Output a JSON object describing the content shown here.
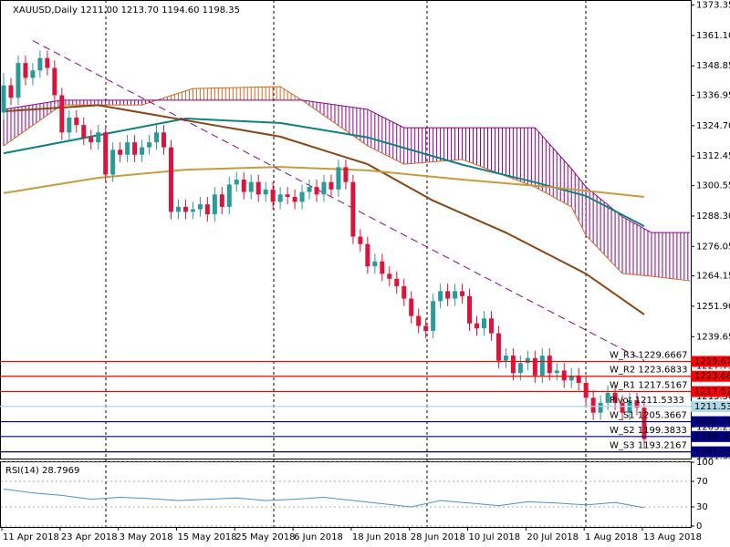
{
  "header": "XAUUSD,Daily  1211.00 1213.70 1194.60 1198.35",
  "chart_data": [
    {
      "type": "candlestick",
      "categories": [
        "11 Apr 2018",
        null,
        null,
        null,
        null,
        null,
        null,
        null,
        "23 Apr 2018",
        null,
        null,
        null,
        null,
        null,
        null,
        null,
        "3 May 2018",
        null,
        null,
        null,
        null,
        null,
        null,
        null,
        "15 May 2018",
        null,
        null,
        null,
        null,
        null,
        null,
        null,
        "25 May 2018",
        null,
        null,
        null,
        null,
        null,
        null,
        null,
        "6 Jun 2018",
        null,
        null,
        null,
        null,
        null,
        null,
        null,
        "18 Jun 2018",
        null,
        null,
        null,
        null,
        null,
        null,
        null,
        "28 Jun 2018",
        null,
        null,
        null,
        null,
        null,
        null,
        null,
        "10 Jul 2018",
        null,
        null,
        null,
        null,
        null,
        null,
        null,
        "20 Jul 2018",
        null,
        null,
        null,
        null,
        null,
        null,
        null,
        "1 Aug 2018",
        null,
        null,
        null,
        null,
        null,
        null,
        null,
        "13 Aug 2018"
      ],
      "open": [
        1330,
        1341,
        1336,
        1350,
        1344,
        1347,
        1352,
        1348,
        1337,
        1322,
        1328,
        1325,
        1320,
        1318,
        1322,
        1305,
        1315,
        1313,
        1318,
        1313,
        1316,
        1318,
        1322,
        1316,
        1290,
        1292,
        1290,
        1291,
        1293,
        1289,
        1297,
        1292,
        1301,
        1303,
        1298,
        1302,
        1297,
        1299,
        1294,
        1297,
        1296,
        1294,
        1298,
        1300,
        1297,
        1302,
        1299,
        1308,
        1302,
        1280,
        1277,
        1268,
        1270,
        1265,
        1263,
        1260,
        1255,
        1248,
        1244,
        1242,
        1254,
        1258,
        1255,
        1258,
        1256,
        1245,
        1243,
        1247,
        1241,
        1230,
        1232,
        1225,
        1229,
        1231,
        1224,
        1232,
        1225,
        1226,
        1222,
        1224,
        1221,
        1215,
        1209,
        1213,
        1217,
        1213,
        1209,
        1214,
        1211
      ],
      "high": [
        1346,
        1344,
        1353,
        1353,
        1350,
        1355,
        1355,
        1351,
        1340,
        1331,
        1331,
        1328,
        1323,
        1325,
        1325,
        1318,
        1318,
        1321,
        1321,
        1319,
        1321,
        1325,
        1325,
        1319,
        1295,
        1295,
        1294,
        1296,
        1296,
        1300,
        1300,
        1304,
        1306,
        1306,
        1305,
        1305,
        1302,
        1302,
        1300,
        1300,
        1299,
        1301,
        1303,
        1303,
        1305,
        1305,
        1311,
        1311,
        1305,
        1283,
        1280,
        1273,
        1273,
        1268,
        1266,
        1263,
        1258,
        1251,
        1247,
        1257,
        1261,
        1261,
        1261,
        1261,
        1259,
        1248,
        1250,
        1250,
        1244,
        1235,
        1235,
        1232,
        1234,
        1234,
        1235,
        1235,
        1229,
        1229,
        1227,
        1227,
        1224,
        1218,
        1216,
        1220,
        1220,
        1216,
        1217,
        1217,
        1213.7
      ],
      "low": [
        1327,
        1333,
        1333,
        1341,
        1341,
        1344,
        1345,
        1334,
        1319,
        1319,
        1322,
        1317,
        1315,
        1315,
        1302,
        1302,
        1310,
        1310,
        1310,
        1310,
        1313,
        1315,
        1313,
        1287,
        1287,
        1287,
        1287,
        1288,
        1286,
        1286,
        1289,
        1289,
        1298,
        1295,
        1295,
        1294,
        1294,
        1291,
        1291,
        1293,
        1291,
        1291,
        1295,
        1294,
        1294,
        1296,
        1296,
        1299,
        1277,
        1274,
        1265,
        1265,
        1262,
        1260,
        1257,
        1252,
        1245,
        1241,
        1239,
        1239,
        1251,
        1252,
        1252,
        1253,
        1242,
        1240,
        1240,
        1238,
        1227,
        1227,
        1222,
        1222,
        1226,
        1221,
        1221,
        1222,
        1222,
        1219,
        1219,
        1218,
        1212,
        1206,
        1206,
        1210,
        1210,
        1206,
        1206,
        1208,
        1194.6
      ],
      "close": [
        1341,
        1336,
        1350,
        1344,
        1347,
        1352,
        1348,
        1337,
        1322,
        1328,
        1325,
        1320,
        1318,
        1322,
        1305,
        1315,
        1313,
        1318,
        1313,
        1316,
        1318,
        1322,
        1316,
        1290,
        1292,
        1290,
        1291,
        1293,
        1289,
        1297,
        1292,
        1301,
        1303,
        1298,
        1302,
        1297,
        1299,
        1294,
        1297,
        1296,
        1294,
        1298,
        1300,
        1297,
        1302,
        1299,
        1308,
        1302,
        1280,
        1277,
        1268,
        1270,
        1265,
        1263,
        1260,
        1255,
        1248,
        1244,
        1242,
        1254,
        1258,
        1255,
        1258,
        1256,
        1245,
        1243,
        1247,
        1241,
        1230,
        1232,
        1225,
        1229,
        1231,
        1224,
        1232,
        1225,
        1226,
        1222,
        1224,
        1221,
        1215,
        1209,
        1213,
        1217,
        1213,
        1209,
        1214,
        1211,
        1198.35
      ],
      "up_color": "#2b9a9a",
      "down_color": "#dc143c",
      "ylim": [
        1190.5,
        1375.4
      ],
      "yticks": [
        1373.35,
        {
          "value": 1361.1,
          "label": "1361.10"
        },
        1348.85,
        1336.95,
        {
          "value": 1324.7,
          "label": "1324.70"
        },
        1312.45,
        1300.55,
        {
          "value": 1288.3,
          "label": "1288.30"
        },
        1276.05,
        1264.15,
        {
          "value": 1251.9,
          "label": "1251.90"
        },
        1239.65,
        1227.75,
        {
          "value": 1215.5,
          "label": "1215.50"
        },
        1203.25,
        1191.35
      ],
      "series": [
        {
          "color": "#0b8181",
          "x": [
            0,
            25,
            38,
            50,
            63,
            73,
            80,
            88
          ],
          "values": [
            1313.6,
            1327.6,
            1325.8,
            1320,
            1309,
            1301.9,
            1296.4,
            1284.2
          ]
        },
        {
          "color": "#8b4513",
          "x": [
            0,
            13,
            25,
            38,
            50,
            59,
            69,
            80,
            88
          ],
          "values": [
            1330.5,
            1333,
            1326.9,
            1320.3,
            1309.2,
            1294.5,
            1281.6,
            1265,
            1248.6
          ]
        },
        {
          "color": "#c89b3c",
          "x": [
            0,
            13,
            25,
            38,
            50,
            63,
            75,
            88
          ],
          "values": [
            1297.5,
            1303.7,
            1307,
            1308.1,
            1306.7,
            1303,
            1300,
            1296
          ]
        }
      ],
      "cloud": {
        "x": [
          0,
          8,
          19,
          26,
          38,
          41,
          50,
          55,
          63,
          73,
          78,
          80,
          85,
          89,
          95
        ],
        "span_a": [
          1316.6,
          1333.1,
          1333.1,
          1339.7,
          1340.5,
          1335,
          1316.6,
          1309.2,
          1311.1,
          1300,
          1292,
          1280.5,
          1265.1,
          1264,
          1262.2
        ],
        "span_b": [
          1331.3,
          1335,
          1335,
          1335,
          1335,
          1335,
          1331.3,
          1323.9,
          1323.9,
          1323.9,
          1307.4,
          1300,
          1288,
          1281.6,
          1281.6
        ],
        "color_a": "#d2691e",
        "color_b": "#8b008b"
      },
      "trendline": {
        "x": [
          4,
          88
        ],
        "y": [
          1359,
          1230
        ],
        "color": "#8b008b"
      },
      "levels": {
        "values": [
          1229.6667,
          1223.6833,
          1217.5167,
          1211.5333,
          1205.3667,
          1199.3833,
          1193.2167
        ],
        "value_labels": [
          "1229.67",
          "1223.68",
          "1217.52",
          "1211.53",
          "1205.37",
          "1199.38",
          "1193.22"
        ],
        "texts": [
          "W_R3 1229.6667",
          "W_R2 1223.6833",
          "W_R1 1217.5167",
          "Pivot 1211.5333",
          "W_S1 1205.3667",
          "W_S2 1199.3833",
          "W_S3 1193.2167"
        ],
        "colors": [
          "#ff0000",
          "#ff0000",
          "#ff0000",
          "#add8e6",
          "#00008b",
          "#00008b",
          "#00008b"
        ]
      }
    },
    {
      "type": "line",
      "title": "RSI(14) 28.7969",
      "color": "#4a90c8",
      "x": [
        0,
        4,
        8,
        12,
        16,
        20,
        24,
        28,
        32,
        36,
        40,
        44,
        48,
        52,
        56,
        60,
        64,
        68,
        72,
        76,
        80,
        84,
        88
      ],
      "values": [
        58,
        52,
        48,
        42,
        45,
        43,
        40,
        42,
        44,
        40,
        42,
        45,
        40,
        35,
        30,
        40,
        36,
        32,
        38,
        36,
        33,
        37,
        28.8
      ],
      "ylim": [
        0,
        100
      ],
      "yticks": [
        100,
        70,
        30,
        0
      ]
    }
  ]
}
